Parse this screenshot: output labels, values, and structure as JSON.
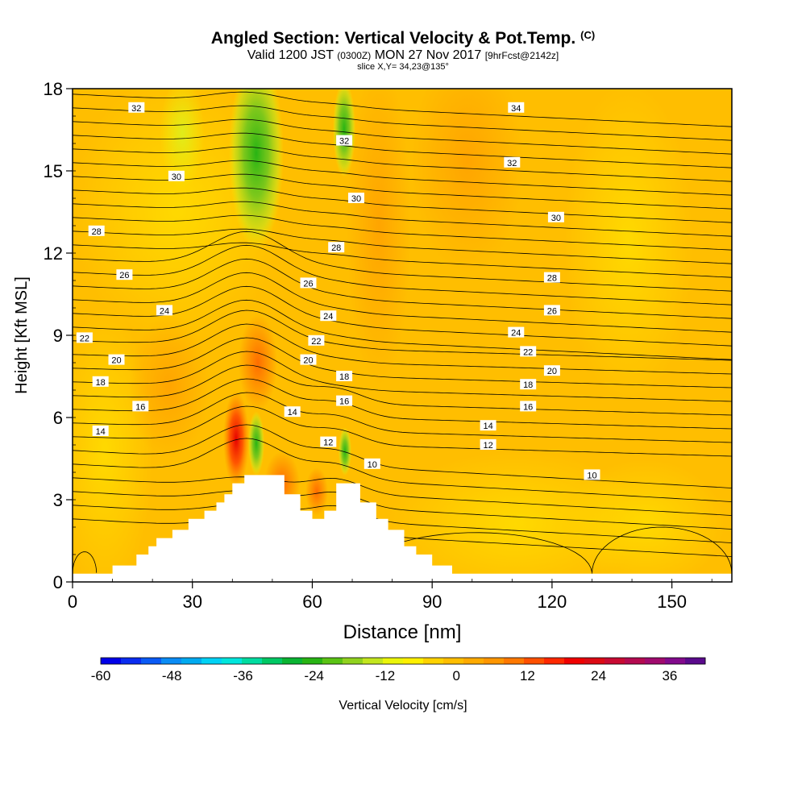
{
  "chart_data": {
    "type": "heatmap",
    "title": "Angled Section: Vertical Velocity & Pot.Temp.",
    "title_mark": "(C)",
    "subtitle_prefix": "Valid 1200 JST",
    "subtitle_utc": "(0300Z)",
    "subtitle_date": "MON 27 Nov 2017",
    "subtitle_fcst": "[9hrFcst@2142z]",
    "slice_info": "slice X,Y= 34,23@135°",
    "xlabel": "Distance [nm]",
    "ylabel": "Height [Kft MSL]",
    "xlim": [
      0,
      165
    ],
    "ylim": [
      0,
      18
    ],
    "x_ticks": [
      "0",
      "30",
      "60",
      "90",
      "120",
      "150"
    ],
    "y_ticks": [
      "0",
      "3",
      "6",
      "9",
      "12",
      "15",
      "18"
    ],
    "colorbar": {
      "label": "Vertical Velocity [cm/s]",
      "min": -60,
      "max": 42,
      "step": 3,
      "tick_labels": [
        "-60",
        "-48",
        "-36",
        "-24",
        "-12",
        "0",
        "12",
        "24",
        "36"
      ],
      "colors": [
        "#0000e8",
        "#0a2cf0",
        "#0a5af5",
        "#0a8cf5",
        "#00aaf0",
        "#00d2f5",
        "#00e6dc",
        "#00dca0",
        "#00c864",
        "#0ab432",
        "#28b414",
        "#5ac314",
        "#91d21e",
        "#c3e61e",
        "#ebf50a",
        "#fff000",
        "#ffd200",
        "#ffbe00",
        "#ffaa00",
        "#ff9600",
        "#ff7800",
        "#ff5000",
        "#ff2800",
        "#f00000",
        "#dc0a14",
        "#c80a32",
        "#b40a50",
        "#a00a6e",
        "#820a8c",
        "#5a0a8c"
      ]
    },
    "terrain_outline": [
      [
        0,
        0.3
      ],
      [
        10,
        0.3
      ],
      [
        10,
        0.6
      ],
      [
        16,
        0.6
      ],
      [
        16,
        1
      ],
      [
        19,
        1
      ],
      [
        19,
        1.3
      ],
      [
        21,
        1.3
      ],
      [
        21,
        1.6
      ],
      [
        25,
        1.6
      ],
      [
        25,
        1.9
      ],
      [
        29,
        1.9
      ],
      [
        29,
        2.3
      ],
      [
        33,
        2.3
      ],
      [
        33,
        2.6
      ],
      [
        36,
        2.6
      ],
      [
        36,
        2.9
      ],
      [
        38,
        2.9
      ],
      [
        38,
        3.2
      ],
      [
        40,
        3.2
      ],
      [
        40,
        3.6
      ],
      [
        43,
        3.6
      ],
      [
        43,
        3.9
      ],
      [
        53,
        3.9
      ],
      [
        53,
        3.2
      ],
      [
        57,
        3.2
      ],
      [
        57,
        2.6
      ],
      [
        60,
        2.6
      ],
      [
        60,
        2.3
      ],
      [
        63,
        2.3
      ],
      [
        63,
        2.6
      ],
      [
        66,
        2.6
      ],
      [
        66,
        3.6
      ],
      [
        72,
        3.6
      ],
      [
        72,
        2.9
      ],
      [
        76,
        2.9
      ],
      [
        76,
        2.3
      ],
      [
        79,
        2.3
      ],
      [
        79,
        1.9
      ],
      [
        83,
        1.9
      ],
      [
        83,
        1.3
      ],
      [
        86,
        1.3
      ],
      [
        86,
        1
      ],
      [
        90,
        1
      ],
      [
        90,
        0.6
      ],
      [
        95,
        0.6
      ],
      [
        95,
        0.3
      ],
      [
        165,
        0.3
      ]
    ],
    "isentropes_c": [
      10,
      12,
      14,
      16,
      18,
      20,
      22,
      24,
      26,
      28,
      30,
      32,
      34
    ],
    "contour_labels": [
      {
        "text": "32",
        "x": 16,
        "y": 17.3
      },
      {
        "text": "34",
        "x": 111,
        "y": 17.3
      },
      {
        "text": "32",
        "x": 68,
        "y": 16.1
      },
      {
        "text": "32",
        "x": 110,
        "y": 15.3
      },
      {
        "text": "30",
        "x": 26,
        "y": 14.8
      },
      {
        "text": "30",
        "x": 71,
        "y": 14
      },
      {
        "text": "30",
        "x": 121,
        "y": 13.3
      },
      {
        "text": "28",
        "x": 6,
        "y": 12.8
      },
      {
        "text": "28",
        "x": 66,
        "y": 12.2
      },
      {
        "text": "26",
        "x": 13,
        "y": 11.2
      },
      {
        "text": "26",
        "x": 59,
        "y": 10.9
      },
      {
        "text": "28",
        "x": 120,
        "y": 11.1
      },
      {
        "text": "24",
        "x": 23,
        "y": 9.9
      },
      {
        "text": "24",
        "x": 64,
        "y": 9.7
      },
      {
        "text": "26",
        "x": 120,
        "y": 9.9
      },
      {
        "text": "22",
        "x": 3,
        "y": 8.9
      },
      {
        "text": "22",
        "x": 61,
        "y": 8.8
      },
      {
        "text": "24",
        "x": 111,
        "y": 9.1
      },
      {
        "text": "20",
        "x": 11,
        "y": 8.1
      },
      {
        "text": "20",
        "x": 59,
        "y": 8.1
      },
      {
        "text": "22",
        "x": 114,
        "y": 8.4
      },
      {
        "text": "20",
        "x": 120,
        "y": 7.7
      },
      {
        "text": "18",
        "x": 7,
        "y": 7.3
      },
      {
        "text": "18",
        "x": 68,
        "y": 7.5
      },
      {
        "text": "18",
        "x": 114,
        "y": 7.2
      },
      {
        "text": "16",
        "x": 17,
        "y": 6.4
      },
      {
        "text": "16",
        "x": 68,
        "y": 6.6
      },
      {
        "text": "16",
        "x": 114,
        "y": 6.4
      },
      {
        "text": "14",
        "x": 55,
        "y": 6.2
      },
      {
        "text": "14",
        "x": 7,
        "y": 5.5
      },
      {
        "text": "14",
        "x": 104,
        "y": 5.7
      },
      {
        "text": "12",
        "x": 64,
        "y": 5.1
      },
      {
        "text": "12",
        "x": 104,
        "y": 5
      },
      {
        "text": "10",
        "x": 75,
        "y": 4.3
      },
      {
        "text": "10",
        "x": 130,
        "y": 3.9
      }
    ]
  }
}
